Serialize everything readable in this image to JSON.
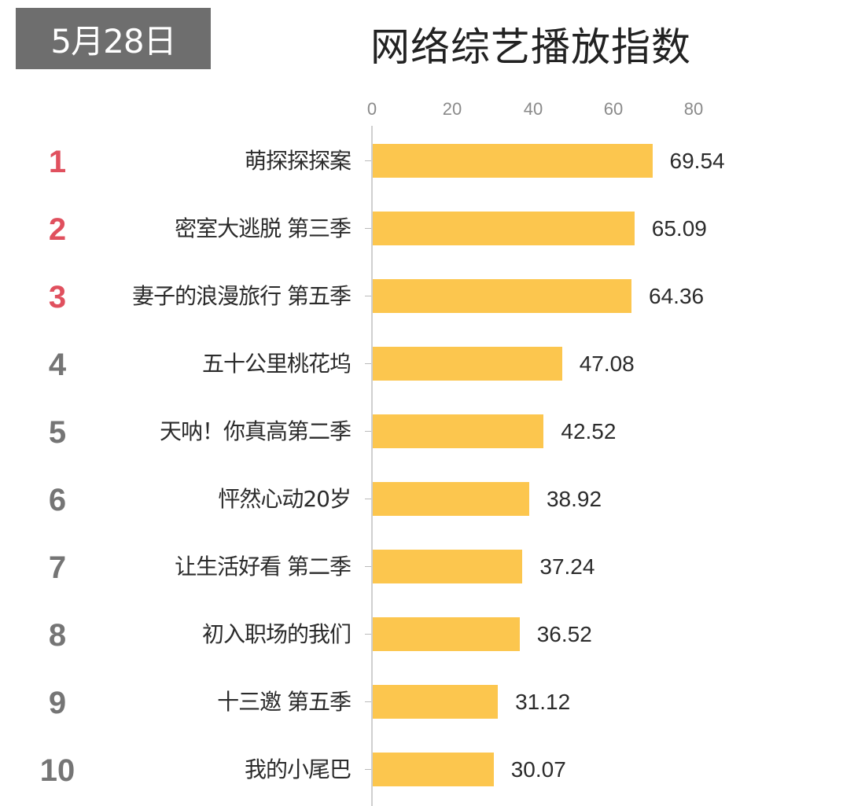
{
  "header": {
    "date": "5月28日",
    "title": "网络综艺播放指数"
  },
  "colors": {
    "bar": "#fcc64e",
    "top_rank": "#e0505e",
    "other_rank": "#757575",
    "badge_bg": "#6e6e6e"
  },
  "axis": {
    "ticks": [
      "0",
      "20",
      "40",
      "60",
      "80"
    ]
  },
  "rows": [
    {
      "rank": "1",
      "name": "萌探探探案",
      "value": "69.54"
    },
    {
      "rank": "2",
      "name": "密室大逃脱 第三季",
      "value": "65.09"
    },
    {
      "rank": "3",
      "name": "妻子的浪漫旅行 第五季",
      "value": "64.36"
    },
    {
      "rank": "4",
      "name": "五十公里桃花坞",
      "value": "47.08"
    },
    {
      "rank": "5",
      "name": "天呐！你真高第二季",
      "value": "42.52"
    },
    {
      "rank": "6",
      "name": "怦然心动20岁",
      "value": "38.92"
    },
    {
      "rank": "7",
      "name": "让生活好看 第二季",
      "value": "37.24"
    },
    {
      "rank": "8",
      "name": "初入职场的我们",
      "value": "36.52"
    },
    {
      "rank": "9",
      "name": "十三邀 第五季",
      "value": "31.12"
    },
    {
      "rank": "10",
      "name": "我的小尾巴",
      "value": "30.07"
    }
  ],
  "chart_data": {
    "type": "bar",
    "orientation": "horizontal",
    "title": "网络综艺播放指数",
    "subtitle": "5月28日",
    "categories": [
      "萌探探探案",
      "密室大逃脱 第三季",
      "妻子的浪漫旅行 第五季",
      "五十公里桃花坞",
      "天呐！你真高第二季",
      "怦然心动20岁",
      "让生活好看 第二季",
      "初入职场的我们",
      "十三邀 第五季",
      "我的小尾巴"
    ],
    "values": [
      69.54,
      65.09,
      64.36,
      47.08,
      42.52,
      38.92,
      37.24,
      36.52,
      31.12,
      30.07
    ],
    "ranks": [
      1,
      2,
      3,
      4,
      5,
      6,
      7,
      8,
      9,
      10
    ],
    "xlabel": "",
    "ylabel": "",
    "xlim": [
      0,
      80
    ],
    "xticks": [
      0,
      20,
      40,
      60,
      80
    ],
    "xaxis_position": "top",
    "grid": false,
    "legend": null,
    "data_labels": true
  }
}
